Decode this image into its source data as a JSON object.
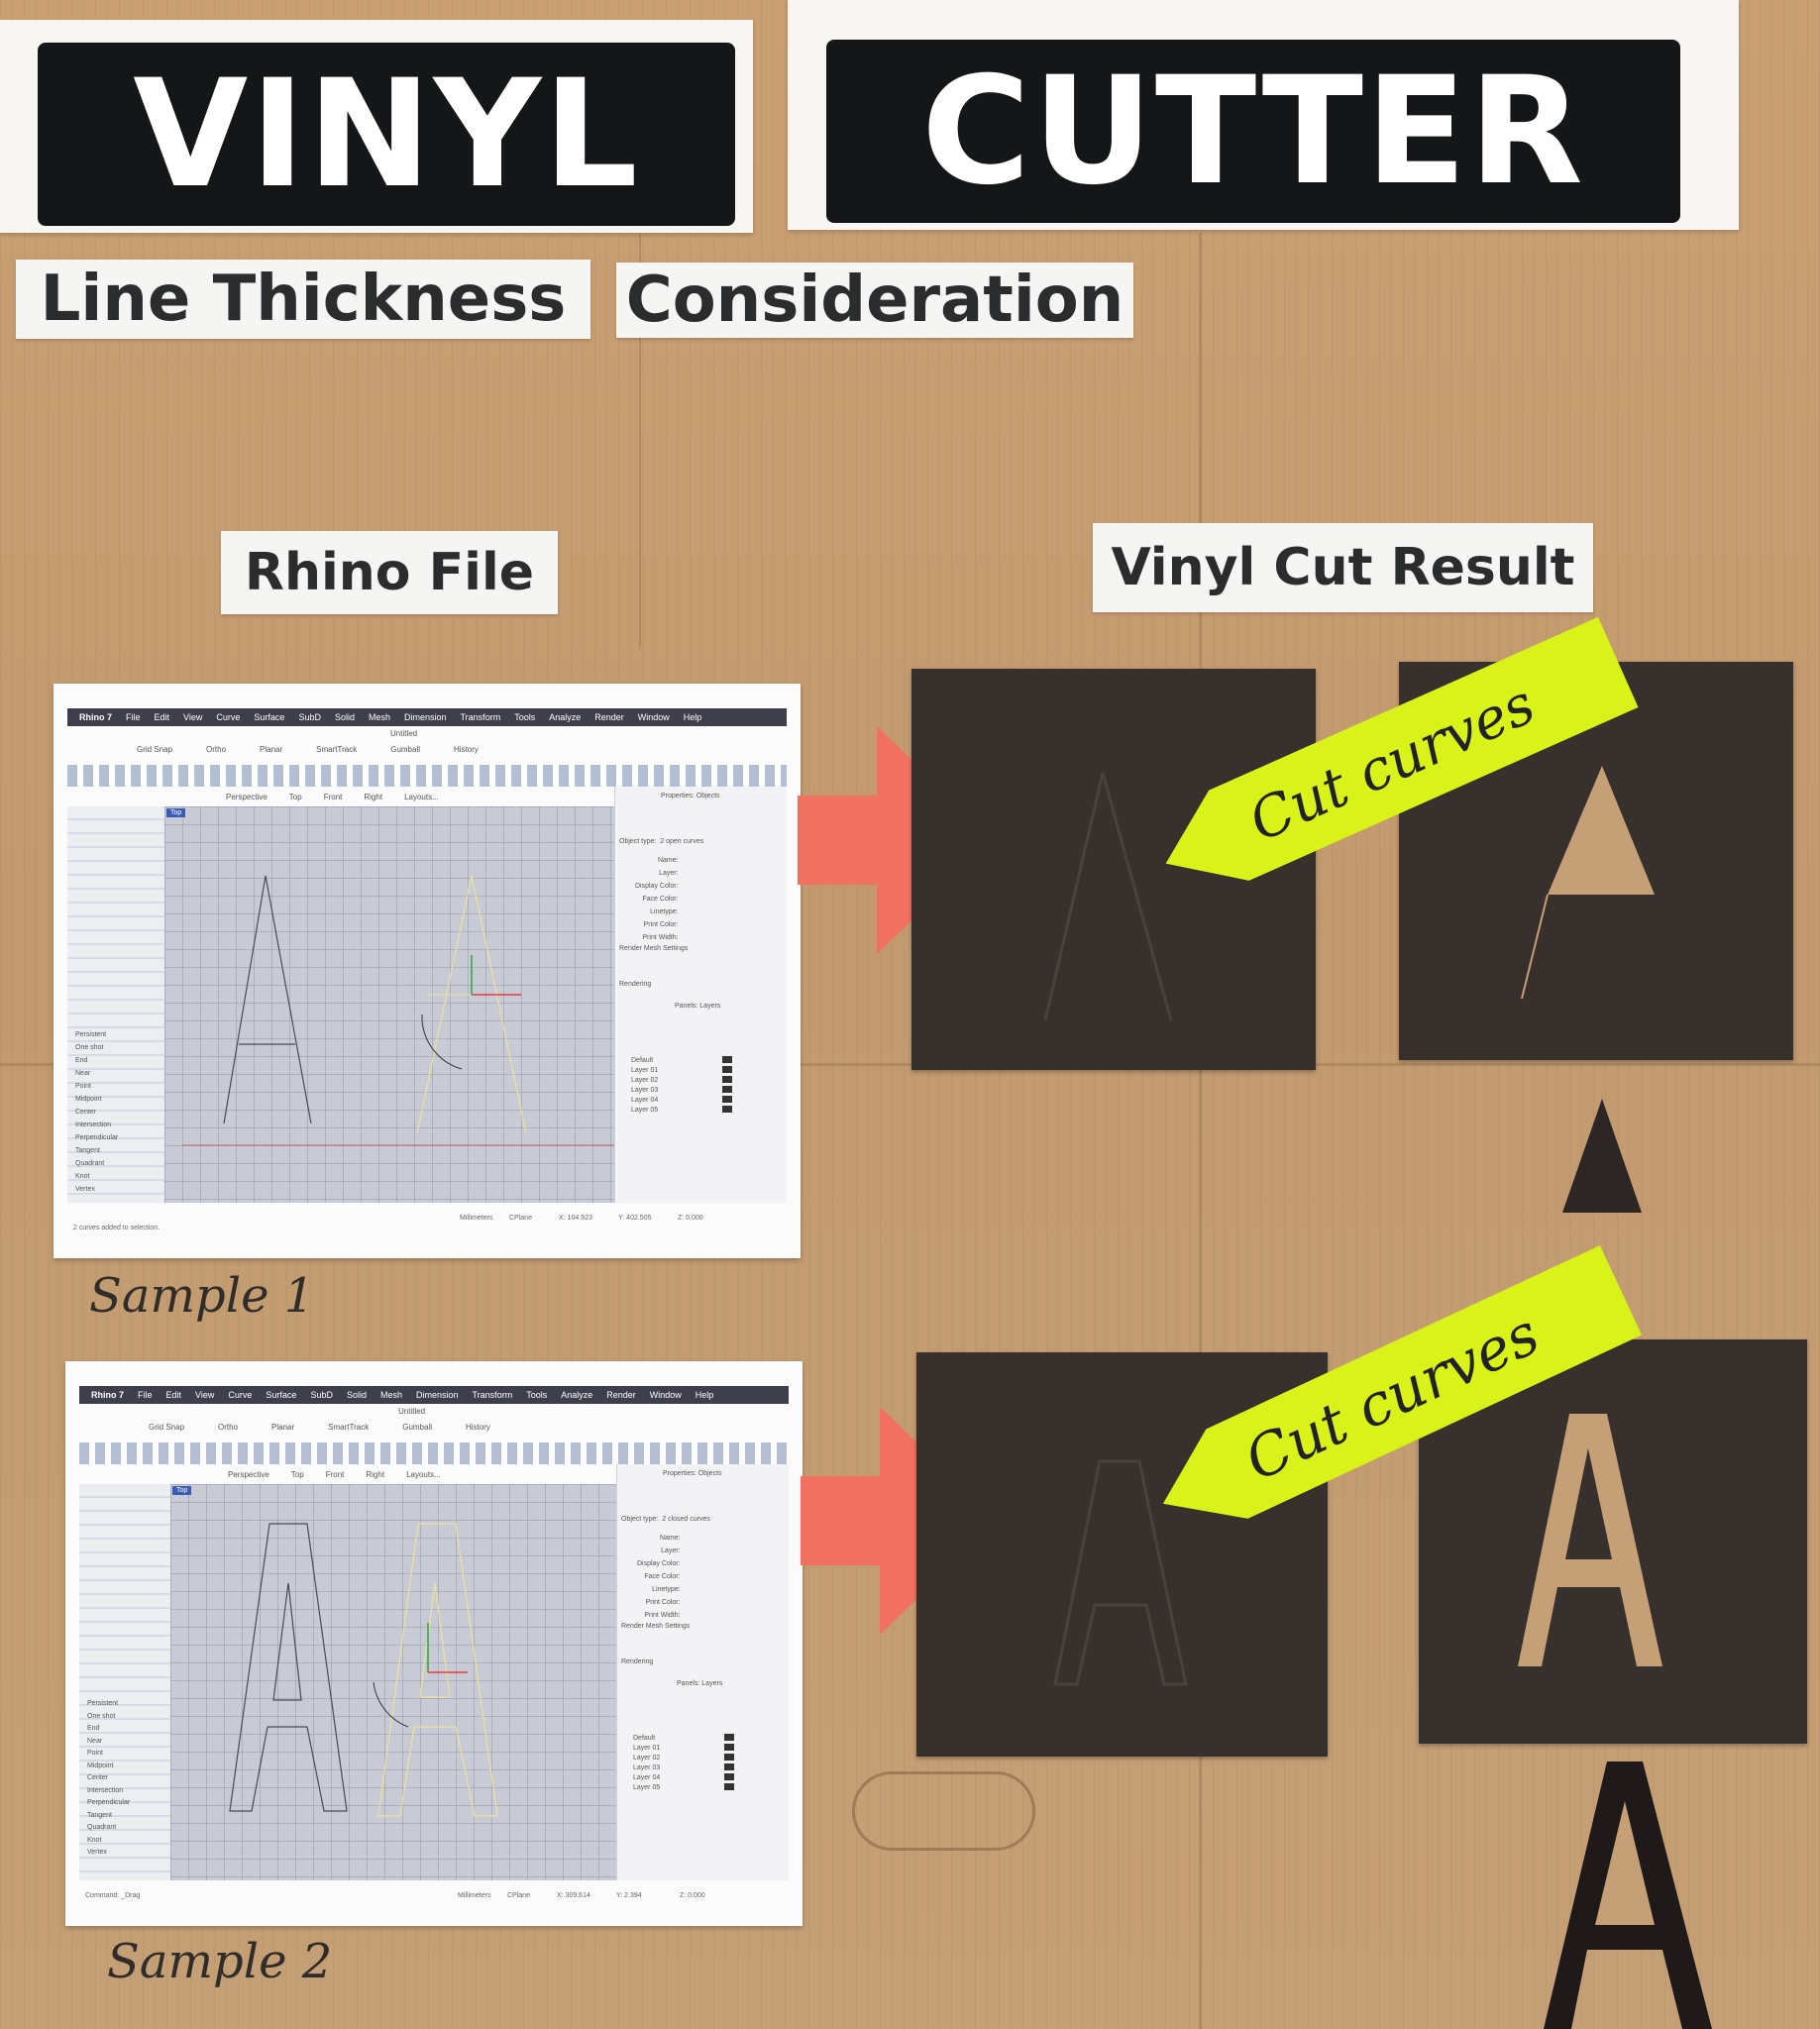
{
  "title": {
    "word1": "VINYL",
    "word2": "CUTTER",
    "subtitle1": "Line Thickness",
    "subtitle2": "Consideration"
  },
  "columns": {
    "left": "Rhino File",
    "right": "Vinyl Cut Result"
  },
  "samples": [
    {
      "caption": "Sample 1",
      "tape": "Cut curves",
      "rhino": {
        "app": "Rhino 7",
        "menu": [
          "File",
          "Edit",
          "View",
          "Curve",
          "Surface",
          "SubD",
          "Solid",
          "Mesh",
          "Dimension",
          "Transform",
          "Tools",
          "Analyze",
          "Render",
          "Window",
          "Help"
        ],
        "doc_title": "Untitled",
        "toolbar": [
          "Grid Snap",
          "Ortho",
          "Planar",
          "SmartTrack",
          "Gumball",
          "History"
        ],
        "viewport_tabs": [
          "Perspective",
          "Top",
          "Front",
          "Right",
          "Layouts..."
        ],
        "viewport_label": "Top",
        "object_type": "2 open curves",
        "snaps": [
          "Persistent",
          "One shot",
          "End",
          "Near",
          "Point",
          "Midpoint",
          "Center",
          "Intersection",
          "Perpendicular",
          "Tangent",
          "Quadrant",
          "Knot",
          "Vertex"
        ],
        "layers": [
          "Default",
          "Layer 01",
          "Layer 02",
          "Layer 03",
          "Layer 04",
          "Layer 05"
        ],
        "status_left": "2 curves added to selection.",
        "units": "Millimeters",
        "cplane": "CPlane",
        "x": "X: 104.923",
        "y": "Y: 402.505",
        "z": "Z: 0.000"
      }
    },
    {
      "caption": "Sample 2",
      "tape": "Cut curves",
      "rhino": {
        "app": "Rhino 7",
        "menu": [
          "File",
          "Edit",
          "View",
          "Curve",
          "Surface",
          "SubD",
          "Solid",
          "Mesh",
          "Dimension",
          "Transform",
          "Tools",
          "Analyze",
          "Render",
          "Window",
          "Help"
        ],
        "doc_title": "Untitled",
        "toolbar": [
          "Grid Snap",
          "Ortho",
          "Planar",
          "SmartTrack",
          "Gumball",
          "History"
        ],
        "viewport_tabs": [
          "Perspective",
          "Top",
          "Front",
          "Right",
          "Layouts..."
        ],
        "viewport_label": "Top",
        "object_type": "2 closed curves",
        "snaps": [
          "Persistent",
          "One shot",
          "End",
          "Near",
          "Point",
          "Midpoint",
          "Center",
          "Intersection",
          "Perpendicular",
          "Tangent",
          "Quadrant",
          "Knot",
          "Vertex"
        ],
        "layers": [
          "Default",
          "Layer 01",
          "Layer 02",
          "Layer 03",
          "Layer 04",
          "Layer 05"
        ],
        "status_left": "Command: _Drag",
        "units": "Millimeters",
        "cplane": "CPlane",
        "x": "X: 309.614",
        "y": "Y: 2.394",
        "z": "Z: 0.000"
      }
    }
  ],
  "colors": {
    "cardboard": "#c59f75",
    "vinyl": "#38302d",
    "arrow": "#f2705f",
    "tape": "#d9f21a",
    "title_black": "#141618"
  }
}
